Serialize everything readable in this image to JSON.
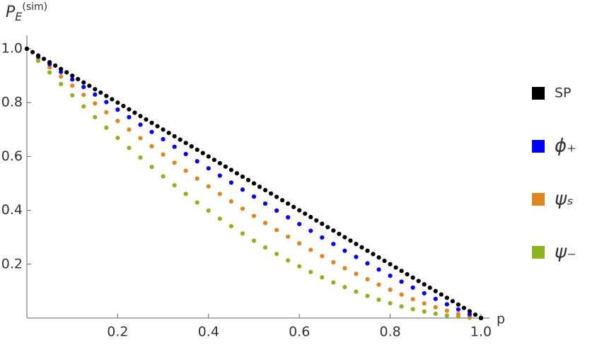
{
  "chart_data": {
    "type": "scatter",
    "y_label": {
      "base": "P",
      "sub": "E",
      "sup": "(sim)"
    },
    "x_label": "p",
    "xlim": [
      0,
      1
    ],
    "ylim": [
      0,
      1.02
    ],
    "xticks": [
      0.2,
      0.4,
      0.6,
      0.8,
      {
        "value": 1,
        "label": "1.0"
      }
    ],
    "yticks": [
      0.2,
      0.4,
      0.6,
      0.8,
      {
        "value": 1,
        "label": "1.0"
      }
    ],
    "legend": "right",
    "series": [
      {
        "name": "SP",
        "color": "#000000",
        "x": [
          0,
          0.0125,
          0.025,
          0.0375,
          0.05,
          0.0625,
          0.075,
          0.0875,
          0.1,
          0.1125,
          0.125,
          0.1375,
          0.15,
          0.1625,
          0.175,
          0.1875,
          0.2,
          0.2125,
          0.225,
          0.2375,
          0.25,
          0.2625,
          0.275,
          0.2875,
          0.3,
          0.3125,
          0.325,
          0.3375,
          0.35,
          0.3625,
          0.375,
          0.3875,
          0.4,
          0.4125,
          0.425,
          0.4375,
          0.45,
          0.4625,
          0.475,
          0.4875,
          0.5,
          0.5125,
          0.525,
          0.5375,
          0.55,
          0.5625,
          0.575,
          0.5875,
          0.6,
          0.6125,
          0.625,
          0.6375,
          0.65,
          0.6625,
          0.675,
          0.6875,
          0.7,
          0.7125,
          0.725,
          0.7375,
          0.75,
          0.7625,
          0.775,
          0.7875,
          0.8,
          0.8125,
          0.825,
          0.8375,
          0.85,
          0.8625,
          0.875,
          0.8875,
          0.9,
          0.9125,
          0.925,
          0.9375,
          0.95,
          0.9625,
          0.975,
          0.9875,
          1
        ],
        "values": [
          1,
          0.9875,
          0.975,
          0.9625,
          0.95,
          0.9375,
          0.925,
          0.9125,
          0.9,
          0.8875,
          0.875,
          0.8625,
          0.85,
          0.8375,
          0.825,
          0.8125,
          0.8,
          0.7875,
          0.775,
          0.7625,
          0.75,
          0.7375,
          0.725,
          0.7125,
          0.7,
          0.6875,
          0.675,
          0.6625,
          0.65,
          0.6375,
          0.625,
          0.6125,
          0.6,
          0.5875,
          0.575,
          0.5625,
          0.55,
          0.5375,
          0.525,
          0.5125,
          0.5,
          0.4875,
          0.475,
          0.4625,
          0.45,
          0.4375,
          0.425,
          0.4125,
          0.4,
          0.3875,
          0.375,
          0.3625,
          0.35,
          0.3375,
          0.325,
          0.3125,
          0.3,
          0.2875,
          0.275,
          0.2625,
          0.25,
          0.2375,
          0.225,
          0.2125,
          0.2,
          0.1875,
          0.175,
          0.1625,
          0.15,
          0.1375,
          0.125,
          0.1125,
          0.1,
          0.0875,
          0.075,
          0.0625,
          0.05,
          0.0375,
          0.025,
          0.0125,
          0
        ]
      },
      {
        "name": "ϕ₊",
        "color": "#0000ff",
        "x": [
          0,
          0.025,
          0.05,
          0.075,
          0.1,
          0.125,
          0.15,
          0.175,
          0.2,
          0.225,
          0.25,
          0.275,
          0.3,
          0.325,
          0.35,
          0.375,
          0.4,
          0.425,
          0.45,
          0.475,
          0.5,
          0.525,
          0.55,
          0.575,
          0.6,
          0.625,
          0.65,
          0.675,
          0.7,
          0.725,
          0.75,
          0.775,
          0.8,
          0.825,
          0.85,
          0.875,
          0.9,
          0.925,
          0.95,
          0.975,
          1
        ],
        "values": [
          1,
          0.971,
          0.943,
          0.914,
          0.886,
          0.858,
          0.83,
          0.802,
          0.774,
          0.746,
          0.718,
          0.691,
          0.664,
          0.636,
          0.609,
          0.582,
          0.556,
          0.529,
          0.503,
          0.477,
          0.451,
          0.425,
          0.399,
          0.374,
          0.349,
          0.324,
          0.299,
          0.275,
          0.25,
          0.227,
          0.203,
          0.18,
          0.157,
          0.135,
          0.113,
          0.092,
          0.071,
          0.051,
          0.032,
          0.014,
          0
        ]
      },
      {
        "name": "ψₛ",
        "color": "#e0861a",
        "x": [
          0,
          0.025,
          0.05,
          0.075,
          0.1,
          0.125,
          0.15,
          0.175,
          0.2,
          0.225,
          0.25,
          0.275,
          0.3,
          0.325,
          0.35,
          0.375,
          0.4,
          0.425,
          0.45,
          0.475,
          0.5,
          0.525,
          0.55,
          0.575,
          0.6,
          0.625,
          0.65,
          0.675,
          0.7,
          0.725,
          0.75,
          0.775,
          0.8,
          0.825,
          0.85,
          0.875,
          0.9,
          0.925,
          0.95,
          0.975,
          1
        ],
        "values": [
          1,
          0.965,
          0.931,
          0.897,
          0.863,
          0.829,
          0.797,
          0.764,
          0.732,
          0.7,
          0.668,
          0.638,
          0.607,
          0.577,
          0.547,
          0.518,
          0.489,
          0.461,
          0.433,
          0.406,
          0.379,
          0.353,
          0.327,
          0.302,
          0.277,
          0.253,
          0.23,
          0.207,
          0.185,
          0.164,
          0.144,
          0.124,
          0.105,
          0.087,
          0.07,
          0.054,
          0.04,
          0.027,
          0.015,
          0.006,
          0
        ]
      },
      {
        "name": "ψ₋",
        "color": "#8fb31d",
        "x": [
          0,
          0.025,
          0.05,
          0.075,
          0.1,
          0.125,
          0.15,
          0.175,
          0.2,
          0.225,
          0.25,
          0.275,
          0.3,
          0.325,
          0.35,
          0.375,
          0.4,
          0.425,
          0.45,
          0.475,
          0.5,
          0.525,
          0.55,
          0.575,
          0.6,
          0.625,
          0.65,
          0.675,
          0.7,
          0.725,
          0.75,
          0.775,
          0.8,
          0.825,
          0.85,
          0.875,
          0.9,
          0.925,
          0.95,
          0.975,
          1
        ],
        "values": [
          1,
          0.955,
          0.912,
          0.869,
          0.827,
          0.786,
          0.746,
          0.707,
          0.669,
          0.632,
          0.596,
          0.561,
          0.526,
          0.493,
          0.461,
          0.429,
          0.399,
          0.369,
          0.341,
          0.314,
          0.287,
          0.262,
          0.238,
          0.214,
          0.192,
          0.171,
          0.151,
          0.132,
          0.115,
          0.098,
          0.082,
          0.068,
          0.055,
          0.043,
          0.033,
          0.024,
          0.016,
          0.009,
          0.005,
          0.001,
          0
        ]
      }
    ]
  }
}
